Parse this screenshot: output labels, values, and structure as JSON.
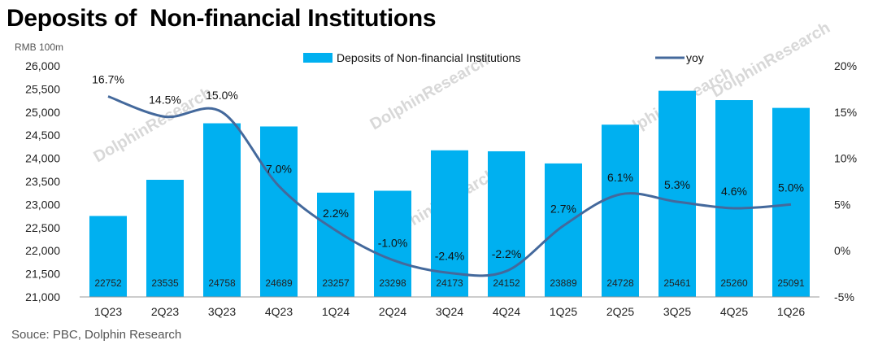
{
  "title": "Deposits of  Non-financial Institutions",
  "unit_label": "RMB 100m",
  "source": "Souce: PBC, Dolphin Research",
  "watermark": "DolphinResearch",
  "colors": {
    "bar": "#00b0f0",
    "line": "#44699c"
  },
  "chart_data": {
    "type": "bar",
    "categories": [
      "1Q23",
      "2Q23",
      "3Q23",
      "4Q23",
      "1Q24",
      "2Q24",
      "3Q24",
      "4Q24",
      "1Q25",
      "2Q25",
      "3Q25",
      "4Q25",
      "1Q26"
    ],
    "series": [
      {
        "name": "Deposits of  Non-financial Institutions",
        "type": "bar",
        "axis": "left",
        "values": [
          22752,
          23535,
          24758,
          24689,
          23257,
          23298,
          24173,
          24152,
          23889,
          24728,
          25461,
          25260,
          25091
        ],
        "labels": [
          "22752",
          "23535",
          "24758",
          "24689",
          "23257",
          "23298",
          "24173",
          "24152",
          "23889",
          "24728",
          "25461",
          "25260",
          "25091"
        ]
      },
      {
        "name": "yoy",
        "type": "line",
        "axis": "right",
        "values": [
          16.7,
          14.5,
          15.0,
          7.0,
          2.2,
          -1.0,
          -2.4,
          -2.2,
          2.7,
          6.1,
          5.3,
          4.6,
          5.0
        ],
        "labels": [
          "16.7%",
          "14.5%",
          "15.0%",
          "7.0%",
          "2.2%",
          "-1.0%",
          "-2.4%",
          "-2.2%",
          "2.7%",
          "6.1%",
          "5.3%",
          "4.6%",
          "5.0%"
        ]
      }
    ],
    "ylim": [
      21000,
      26000
    ],
    "y_ticks": [
      "21,000",
      "21,500",
      "22,000",
      "22,500",
      "23,000",
      "23,500",
      "24,000",
      "24,500",
      "25,000",
      "25,500",
      "26,000"
    ],
    "y2lim": [
      -5,
      20
    ],
    "y2_ticks": [
      "-5%",
      "0%",
      "5%",
      "10%",
      "15%",
      "20%"
    ],
    "legend_position": "top",
    "grid": false
  }
}
